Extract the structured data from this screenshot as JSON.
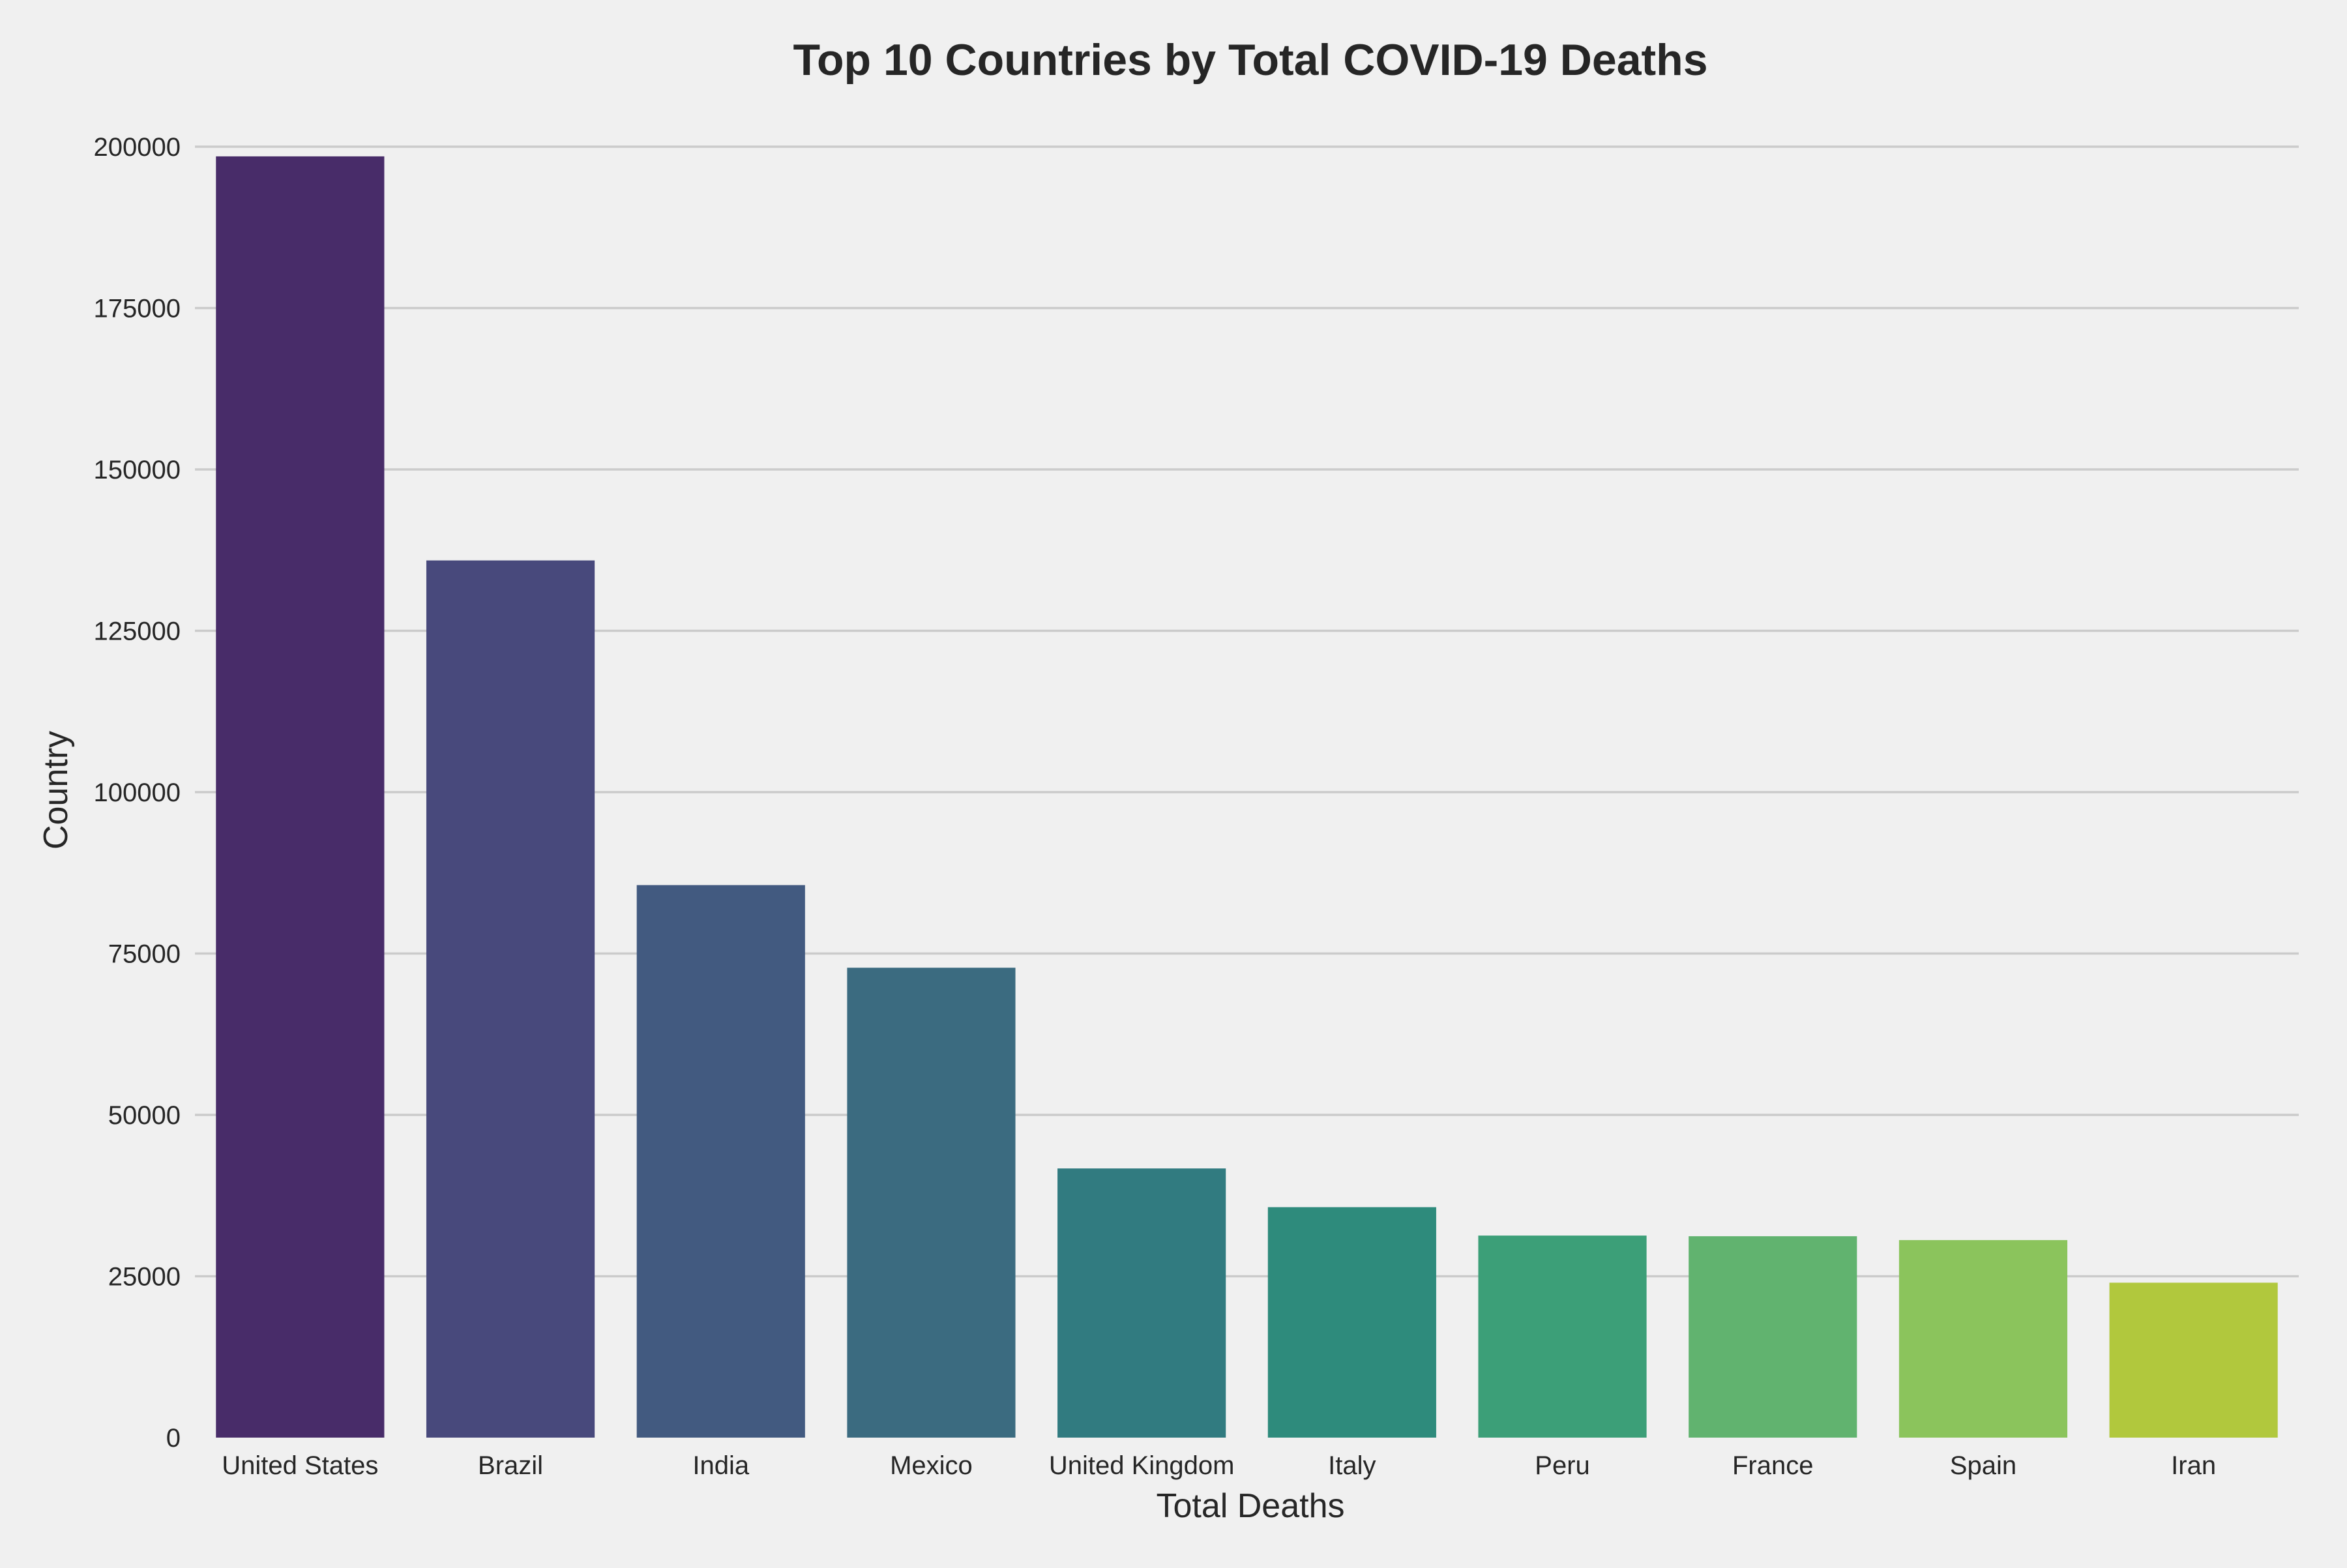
{
  "chart_data": {
    "type": "bar",
    "title": "Top 10 Countries by Total COVID-19 Deaths",
    "xlabel": "Total Deaths",
    "ylabel": "Country",
    "categories": [
      "United States",
      "Brazil",
      "India",
      "Mexico",
      "United Kingdom",
      "Italy",
      "Peru",
      "France",
      "Spain",
      "Iran"
    ],
    "values": [
      198500,
      135900,
      85600,
      72800,
      41700,
      35700,
      31300,
      31200,
      30600,
      24000
    ],
    "colors": [
      "#482c69",
      "#48497c",
      "#425a80",
      "#3b6b80",
      "#317b80",
      "#2e8b7c",
      "#3c9f78",
      "#61b36f",
      "#8bc45c",
      "#b1c83d"
    ],
    "ylim": [
      0,
      200000
    ],
    "yticks": [
      0,
      25000,
      50000,
      75000,
      100000,
      125000,
      150000,
      175000,
      200000
    ],
    "grid": true
  }
}
